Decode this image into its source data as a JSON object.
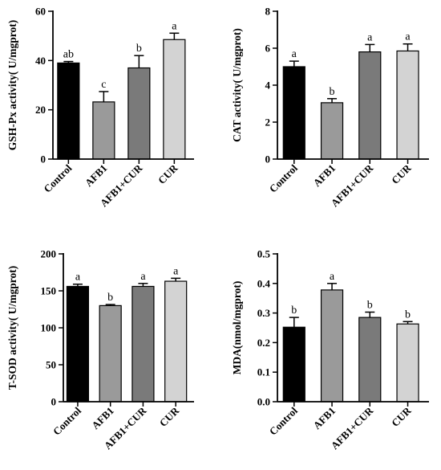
{
  "colors": [
    "#000000",
    "#9a9a9a",
    "#7a7a7a",
    "#d3d3d3"
  ],
  "chart_data": [
    {
      "type": "bar",
      "ylabel": "GSH-Px activity( U/mgprot)",
      "categories": [
        "Control",
        "AFB1",
        "AFB1+CUR",
        "CUR"
      ],
      "values": [
        39,
        23.2,
        37,
        48.5
      ],
      "errors": [
        0.6,
        4.2,
        5,
        2.6
      ],
      "significance": [
        "ab",
        "c",
        "b",
        "a"
      ],
      "ylim": [
        0,
        60
      ],
      "yticks": [
        "0",
        "20",
        "40",
        "60"
      ],
      "ytick_values": [
        0,
        20,
        40,
        60
      ]
    },
    {
      "type": "bar",
      "ylabel": "CAT activity( U/mgprot)",
      "categories": [
        "Control",
        "AFB1",
        "AFB1+CUR",
        "CUR"
      ],
      "values": [
        5.0,
        3.05,
        5.8,
        5.85
      ],
      "errors": [
        0.3,
        0.22,
        0.4,
        0.38
      ],
      "significance": [
        "a",
        "b",
        "a",
        "a"
      ],
      "ylim": [
        0,
        8
      ],
      "yticks": [
        "0",
        "2",
        "4",
        "6",
        "8"
      ],
      "ytick_values": [
        0,
        2,
        4,
        6,
        8
      ]
    },
    {
      "type": "bar",
      "ylabel": "T-SOD activity( U/mgprot)",
      "categories": [
        "Control",
        "AFB1",
        "AFB1+CUR",
        "CUR"
      ],
      "values": [
        156,
        130,
        156,
        163
      ],
      "errors": [
        3,
        1.5,
        4,
        4
      ],
      "significance": [
        "a",
        "b",
        "a",
        "a"
      ],
      "ylim": [
        0,
        200
      ],
      "yticks": [
        "0",
        "50",
        "100",
        "150",
        "200"
      ],
      "ytick_values": [
        0,
        50,
        100,
        150,
        200
      ]
    },
    {
      "type": "bar",
      "ylabel": "MDA(nmol/mgprot)",
      "categories": [
        "Control",
        "AFB1",
        "AFB1+CUR",
        "CUR"
      ],
      "values": [
        0.252,
        0.378,
        0.285,
        0.263
      ],
      "errors": [
        0.033,
        0.022,
        0.018,
        0.008
      ],
      "significance": [
        "b",
        "a",
        "b",
        "b"
      ],
      "ylim": [
        0,
        0.5
      ],
      "yticks": [
        "0.0",
        "0.1",
        "0.2",
        "0.3",
        "0.4",
        "0.5"
      ],
      "ytick_values": [
        0,
        0.1,
        0.2,
        0.3,
        0.4,
        0.5
      ]
    }
  ]
}
